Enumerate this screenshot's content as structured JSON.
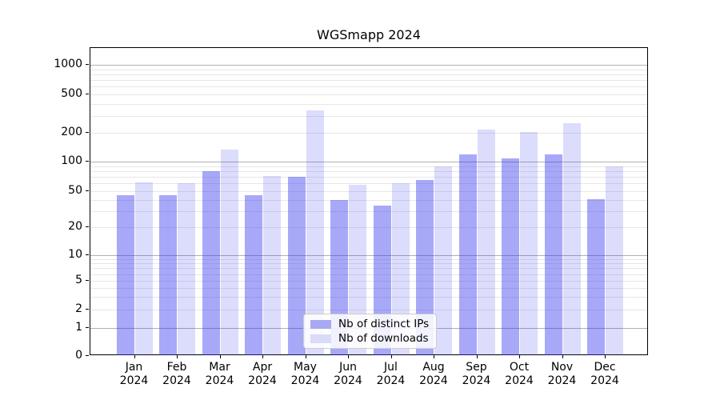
{
  "chart_data": {
    "type": "bar",
    "title": "WGSmapp 2024",
    "categories": [
      "Jan",
      "Feb",
      "Mar",
      "Apr",
      "May",
      "Jun",
      "Jul",
      "Aug",
      "Sep",
      "Oct",
      "Nov",
      "Dec"
    ],
    "category_year": "2024",
    "series": [
      {
        "name": "Nb of distinct IPs",
        "values": [
          45,
          45,
          80,
          45,
          70,
          40,
          35,
          65,
          120,
          108,
          120,
          41
        ],
        "color": "rgba(48,48,238,0.42)",
        "legend_color": "#a8a8f3"
      },
      {
        "name": "Nb of downloads",
        "values": [
          62,
          60,
          133,
          71,
          340,
          58,
          60,
          90,
          215,
          202,
          250,
          90
        ],
        "color": "rgba(48,48,238,0.17)",
        "legend_color": "#dadaf9"
      }
    ],
    "xlabel": "",
    "ylabel": "",
    "yscale": "symlog",
    "yticks": [
      0,
      1,
      2,
      5,
      10,
      20,
      50,
      100,
      200,
      500,
      1000
    ],
    "ylim": [
      0,
      1500
    ],
    "grid": true,
    "legend_position": "lower center"
  },
  "colors": {
    "major_grid": "#b0b0b0",
    "minor_grid": "#e7e7e7",
    "spine": "#000000",
    "background": "#ffffff"
  }
}
